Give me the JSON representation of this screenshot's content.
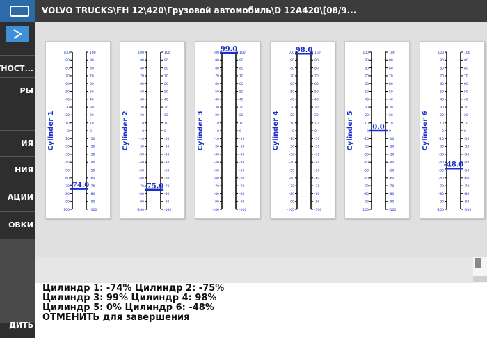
{
  "header": {
    "title": "VOLVO TRUCKS\\FH 12\\420\\Грузовой автомобиль\\D 12A420\\[08/9..."
  },
  "sidebar": {
    "items": [
      {
        "label": "АГНОСТ..."
      },
      {
        "label": "РЫ"
      },
      {
        "label": "ИЯ"
      },
      {
        "label": "НИЯ"
      },
      {
        "label": "АЦИИ"
      },
      {
        "label": "ОВКИ"
      }
    ],
    "exit_label": "ДИТЬ"
  },
  "gauges": [
    {
      "name": "Cylinder 1",
      "value": -74.0,
      "value_label": "-74.0"
    },
    {
      "name": "Cylinder 2",
      "value": -75.0,
      "value_label": "-75.0"
    },
    {
      "name": "Cylinder 3",
      "value": 99.0,
      "value_label": "99.0"
    },
    {
      "name": "Cylinder 4",
      "value": 98.0,
      "value_label": "98.0"
    },
    {
      "name": "Cylinder 5",
      "value": 0.0,
      "value_label": "0.0"
    },
    {
      "name": "Cylinder 6",
      "value": -48.0,
      "value_label": "-48.0"
    }
  ],
  "scale": {
    "min": -100,
    "max": 100,
    "ticks": [
      "100",
      "90",
      "80",
      "70",
      "60",
      "50",
      "40",
      "30",
      "20",
      "10",
      "0",
      "-10",
      "-20",
      "-30",
      "-40",
      "-50",
      "-60",
      "-70",
      "-80",
      "-90",
      "-100"
    ]
  },
  "message": {
    "lines": [
      "Цилиндр 1: -74% Цилиндр 2: -75%",
      "Цилиндр 3: 99% Цилиндр 4: 98%",
      "Цилиндр 5: 0% Цилиндр 6: -48%",
      "ОТМЕНИТЬ для завершения"
    ]
  },
  "colors": {
    "accent": "#1a2fcc",
    "titlebar": "#3c3c3c",
    "sidebar": "#2e2e2e",
    "play_button": "#3e8ed8"
  }
}
